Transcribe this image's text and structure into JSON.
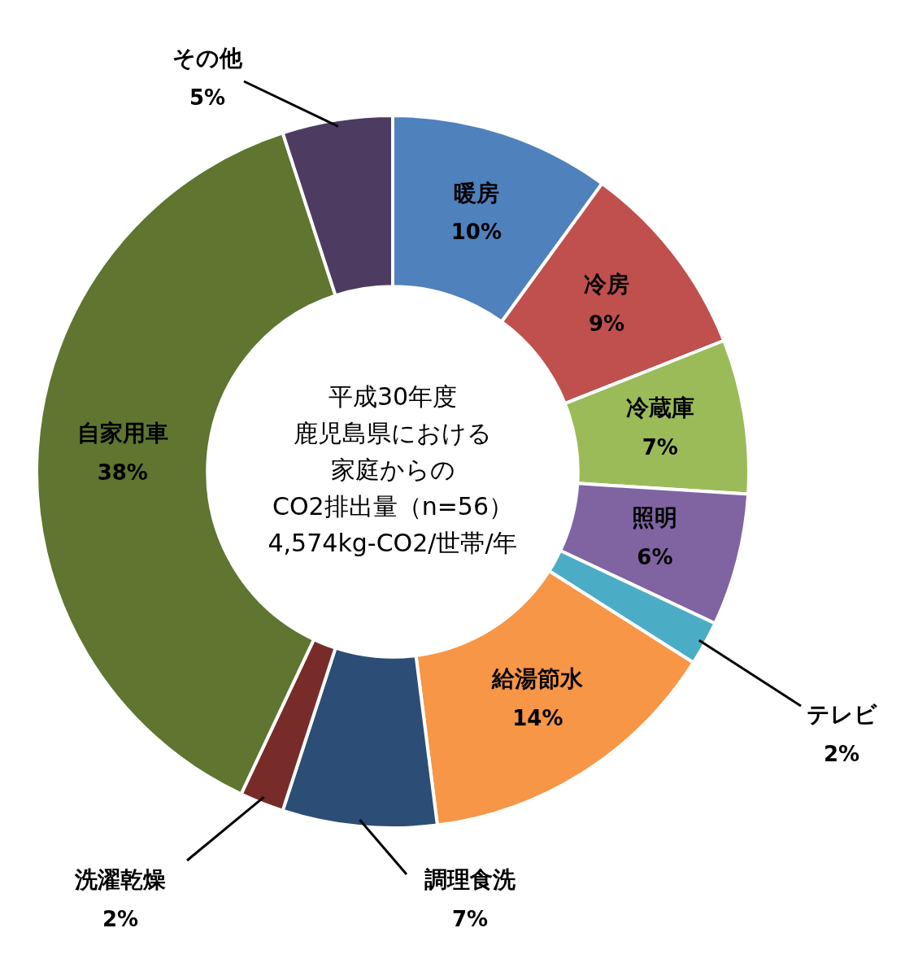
{
  "chart_data": {
    "type": "donut",
    "annotations": [
      "平成30年度",
      "鹿児島県における",
      "家庭からの",
      "CO2排出量（n=56）",
      "4,574kg-CO2/世帯/年"
    ],
    "categories": [
      "暖房",
      "冷房",
      "冷蔵庫",
      "照明",
      "テレビ",
      "給湯節水",
      "調理食洗",
      "洗濯乾燥",
      "自家用車",
      "その他"
    ],
    "values": [
      10,
      9,
      7,
      6,
      2,
      14,
      7,
      2,
      38,
      5
    ],
    "value_labels": [
      "10%",
      "9%",
      "7%",
      "6%",
      "2%",
      "14%",
      "7%",
      "2%",
      "38%",
      "5%"
    ],
    "colors": [
      "#4f81bd",
      "#c0504d",
      "#9bbb59",
      "#8064a2",
      "#4bacc6",
      "#f79646",
      "#2c4d75",
      "#772c2a",
      "#5f7530",
      "#4d3b62"
    ],
    "legend": false
  }
}
